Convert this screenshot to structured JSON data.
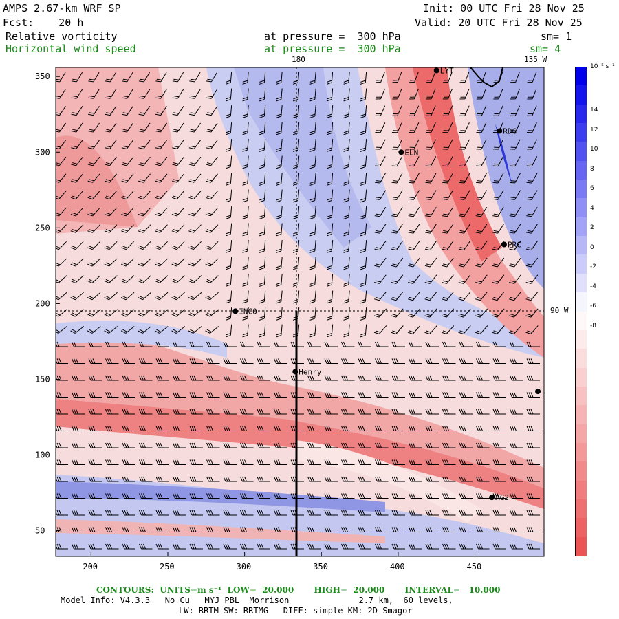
{
  "header": {
    "model": "AMPS 2.67-km WRF SP",
    "init": "Init: 00 UTC Fri 28 Nov 25",
    "fcst": "Fcst:    20 h",
    "valid": "Valid: 20 UTC Fri 28 Nov 25",
    "field1": "Relative vorticity",
    "field1_level": "at pressure =  300 hPa",
    "field1_sm": "sm= 1",
    "field2": "Horizontal wind speed",
    "field2_level": "at pressure =  300 hPa",
    "field2_sm": "sm= 4"
  },
  "map": {
    "top_labels": [
      "180",
      "135 W"
    ],
    "right_label": "90 W",
    "x_ticks": [
      "200",
      "250",
      "300",
      "350",
      "400",
      "450"
    ],
    "y_ticks": [
      "350",
      "300",
      "250",
      "200",
      "150",
      "100",
      "50"
    ],
    "stations": [
      {
        "name": "LYT",
        "x": 425,
        "y": 354
      },
      {
        "name": "RDG",
        "x": 466,
        "y": 314
      },
      {
        "name": "ELN",
        "x": 402,
        "y": 300
      },
      {
        "name": "PRC",
        "x": 469,
        "y": 239
      },
      {
        "name": "INCO",
        "x": 294,
        "y": 195
      },
      {
        "name": "Henry",
        "x": 333,
        "y": 155
      },
      {
        "name": "",
        "x": 491,
        "y": 142
      },
      {
        "name": "AG2",
        "x": 461,
        "y": 72
      }
    ],
    "colors": {
      "positive": "#0000e6",
      "negative": "#ef5555",
      "zero": "#ffffff"
    }
  },
  "colorbar": {
    "units": "10⁻⁵ s⁻¹",
    "labels": [
      "14",
      "12",
      "10",
      "8",
      "6",
      "4",
      "2",
      "0",
      "-2",
      "-4",
      "-6",
      "-8"
    ]
  },
  "footer": {
    "contours": "CONTOURS:  UNITS=m s⁻¹  LOW=  20.000       HIGH=  20.000       INTERVAL=   10.000",
    "model_info": "Model Info: V4.3.3   No Cu   MYJ PBL  Morrison              2.7 km,  60 levels,",
    "physics": "LW: RRTM SW: RRTMG   DIFF: simple KM: 2D Smagor"
  }
}
